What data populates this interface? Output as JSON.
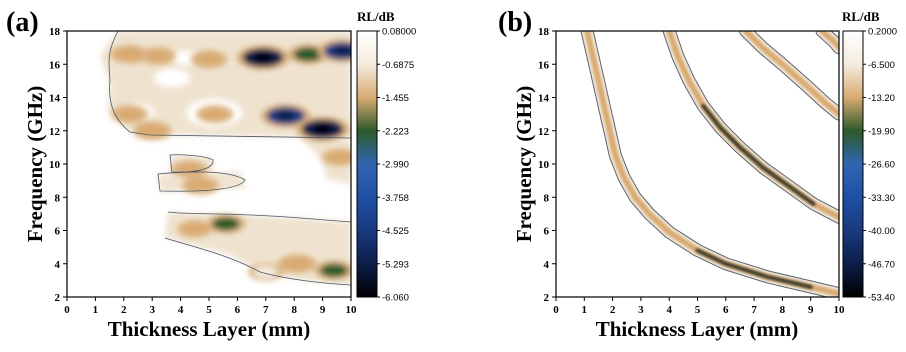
{
  "chart_data": [
    {
      "panel": "(a)",
      "type": "heatmap",
      "xlabel": "Thickness Layer (mm)",
      "ylabel": "Frequency (GHz)",
      "xlim": [
        0,
        10
      ],
      "ylim": [
        2,
        18
      ],
      "x_ticks": [
        0,
        1,
        2,
        3,
        4,
        5,
        6,
        7,
        8,
        9,
        10
      ],
      "y_ticks": [
        2,
        4,
        6,
        8,
        10,
        12,
        14,
        16,
        18
      ],
      "colorbar": {
        "title": "RL/dB",
        "labels": [
          "0.08000",
          "-0.6875",
          "-1.455",
          "-2.223",
          "-2.990",
          "-3.758",
          "-4.525",
          "-5.293",
          "-6.060"
        ],
        "colors_top_to_bottom": [
          "#ffffff",
          "#f4ece0",
          "#d9aa72",
          "#2e5a2a",
          "#2f66b0",
          "#1f4fa5",
          "#1a3a80",
          "#0d1e4a",
          "#000000"
        ]
      },
      "features": [
        {
          "x": 2.2,
          "f": 16.6,
          "rl": -1.6
        },
        {
          "x": 3.2,
          "f": 16.5,
          "rl": -1.0
        },
        {
          "x": 5.0,
          "f": 16.3,
          "rl": -1.2
        },
        {
          "x": 6.9,
          "f": 16.4,
          "rl": -4.8
        },
        {
          "x": 8.5,
          "f": 16.6,
          "rl": -2.2
        },
        {
          "x": 9.7,
          "f": 16.8,
          "rl": -4.0
        },
        {
          "x": 2.2,
          "f": 13.0,
          "rl": -1.3
        },
        {
          "x": 3.0,
          "f": 12.0,
          "rl": -1.6
        },
        {
          "x": 5.2,
          "f": 13.0,
          "rl": -1.2
        },
        {
          "x": 7.7,
          "f": 12.9,
          "rl": -4.2
        },
        {
          "x": 9.0,
          "f": 12.1,
          "rl": -5.0
        },
        {
          "x": 9.6,
          "f": 10.4,
          "rl": -0.9
        },
        {
          "x": 4.3,
          "f": 9.7,
          "rl": -0.9
        },
        {
          "x": 4.7,
          "f": 8.7,
          "rl": -1.2
        },
        {
          "x": 5.6,
          "f": 6.4,
          "rl": -1.8
        },
        {
          "x": 4.5,
          "f": 6.1,
          "rl": -0.9
        },
        {
          "x": 8.1,
          "f": 4.0,
          "rl": -1.6
        },
        {
          "x": 9.4,
          "f": 3.6,
          "rl": -1.8
        },
        {
          "x": 7.0,
          "f": 3.5,
          "rl": -0.8
        }
      ]
    },
    {
      "panel": "(b)",
      "type": "heatmap",
      "xlabel": "Thickness Layer (mm)",
      "ylabel": "Frequency (GHz)",
      "xlim": [
        0,
        10
      ],
      "ylim": [
        2,
        18
      ],
      "x_ticks": [
        0,
        1,
        2,
        3,
        4,
        5,
        6,
        7,
        8,
        9,
        10
      ],
      "y_ticks": [
        2,
        4,
        6,
        8,
        10,
        12,
        14,
        16,
        18
      ],
      "colorbar": {
        "title": "RL/dB",
        "labels": [
          "0.2000",
          "-6.500",
          "-13.20",
          "-19.90",
          "-26.60",
          "-33.30",
          "-40.00",
          "-46.70",
          "-53.40"
        ],
        "colors_top_to_bottom": [
          "#ffffff",
          "#f4ece0",
          "#d9aa72",
          "#2e5a2a",
          "#2f66b0",
          "#1f4fa5",
          "#1a3a80",
          "#0d1e4a",
          "#000000"
        ]
      },
      "bands": [
        {
          "name": "",
          "points": [
            [
              1.1,
              18
            ],
            [
              1.3,
              16.5
            ],
            [
              1.5,
              15.0
            ],
            [
              1.7,
              13.5
            ],
            [
              1.9,
              12.0
            ],
            [
              2.1,
              10.5
            ],
            [
              2.4,
              9.2
            ],
            [
              2.8,
              8.0
            ],
            [
              3.3,
              7.0
            ],
            [
              4.0,
              5.9
            ],
            [
              5.0,
              4.8
            ],
            [
              6.0,
              4.0
            ],
            [
              7.5,
              3.2
            ],
            [
              9.0,
              2.6
            ],
            [
              10,
              2.2
            ]
          ],
          "min_rl": -20
        },
        {
          "name": "",
          "points": [
            [
              4.0,
              18
            ],
            [
              4.3,
              16.5
            ],
            [
              4.7,
              15.0
            ],
            [
              5.2,
              13.5
            ],
            [
              5.8,
              12.2
            ],
            [
              6.5,
              11.0
            ],
            [
              7.3,
              9.8
            ],
            [
              8.2,
              8.7
            ],
            [
              9.1,
              7.6
            ],
            [
              10,
              6.8
            ]
          ],
          "min_rl": -30
        },
        {
          "name": "",
          "points": [
            [
              6.7,
              18
            ],
            [
              7.3,
              17.0
            ],
            [
              8.0,
              16.0
            ],
            [
              8.8,
              14.8
            ],
            [
              9.5,
              13.7
            ],
            [
              10,
              13.0
            ]
          ],
          "min_rl": -14
        },
        {
          "name": "",
          "points": [
            [
              9.4,
              18
            ],
            [
              9.8,
              17.4
            ],
            [
              10,
              17.0
            ]
          ],
          "min_rl": -12
        }
      ]
    }
  ]
}
